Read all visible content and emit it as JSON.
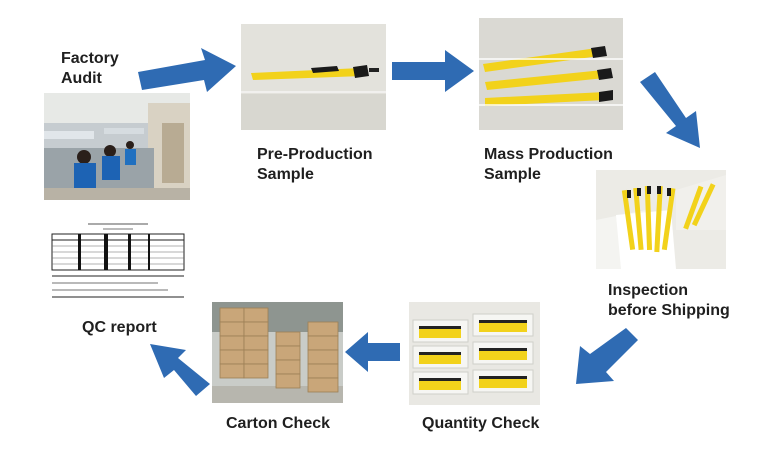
{
  "steps": {
    "factory_audit": {
      "line1": "Factory",
      "line2": "Audit"
    },
    "pre_production": {
      "line1": "Pre-Production",
      "line2": "Sample"
    },
    "mass_production": {
      "line1": "Mass Production",
      "line2": "Sample"
    },
    "inspection": {
      "line1": "Inspection",
      "line2": "before Shipping"
    },
    "quantity_check": {
      "label": "Quantity Check"
    },
    "carton_check": {
      "label": "Carton Check"
    },
    "qc_report": {
      "label": "QC report"
    }
  },
  "colors": {
    "arrow": "#2f6bb3",
    "pen_yellow": "#f2d21b",
    "box_white": "#f4f4f1",
    "carton": "#c9a679"
  }
}
